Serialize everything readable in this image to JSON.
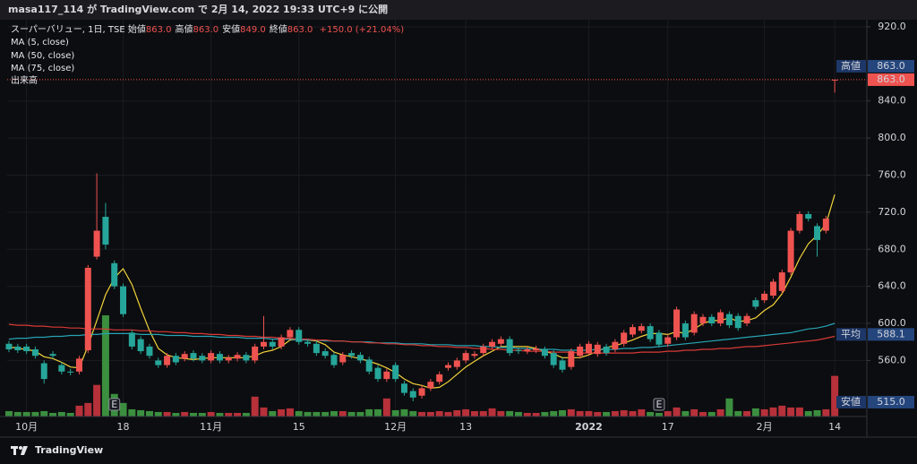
{
  "header": {
    "publisher": "masa117_114 が TradingView.com で 2月 14, 2022 19:33 UTC+9 に公開"
  },
  "legend": {
    "symbol": "スーパーバリュー, 1日, TSE",
    "fields": [
      {
        "name": "始値",
        "value": "863.0"
      },
      {
        "name": "高値",
        "value": "863.0"
      },
      {
        "name": "安値",
        "value": "849.0"
      },
      {
        "name": "終値",
        "value": "863.0"
      }
    ],
    "change": "+150.0 (+21.04%)"
  },
  "footer": {
    "brand": "TradingView"
  },
  "chart_data": {
    "type": "candlestick",
    "categories": [
      null,
      null,
      "10月",
      null,
      null,
      null,
      null,
      null,
      null,
      null,
      null,
      null,
      null,
      "18",
      null,
      null,
      null,
      null,
      null,
      null,
      null,
      null,
      null,
      "11月",
      null,
      null,
      null,
      null,
      null,
      null,
      null,
      null,
      null,
      "15",
      null,
      null,
      null,
      null,
      null,
      null,
      null,
      null,
      null,
      null,
      "12月",
      null,
      null,
      null,
      null,
      null,
      null,
      null,
      "13",
      null,
      null,
      null,
      null,
      null,
      null,
      null,
      null,
      null,
      null,
      null,
      null,
      null,
      "2022",
      null,
      null,
      null,
      null,
      null,
      null,
      null,
      null,
      "17",
      null,
      null,
      null,
      null,
      null,
      null,
      null,
      null,
      null,
      null,
      "2月",
      null,
      null,
      null,
      null,
      null,
      null,
      null,
      "14"
    ],
    "open": [
      578,
      575,
      575,
      572,
      557,
      567,
      555,
      548,
      548,
      571,
      672,
      715,
      665,
      640,
      590,
      583,
      575,
      560,
      555,
      565,
      562,
      568,
      565,
      560,
      567,
      560,
      562,
      566,
      560,
      575,
      580,
      575,
      585,
      593,
      580,
      578,
      570,
      566,
      558,
      568,
      566,
      561,
      552,
      540,
      555,
      535,
      527,
      522,
      530,
      537,
      552,
      553,
      560,
      565,
      568,
      575,
      578,
      583,
      571,
      570,
      571,
      572,
      568,
      560,
      553,
      565,
      568,
      567,
      575,
      572,
      578,
      588,
      592,
      597,
      590,
      578,
      585,
      600,
      590,
      600,
      607,
      600,
      610,
      608,
      600,
      625,
      625,
      630,
      635,
      655,
      700,
      718,
      705,
      700,
      863
    ],
    "high": [
      581,
      578,
      578,
      575,
      560,
      570,
      558,
      551,
      565,
      663,
      762,
      730,
      668,
      643,
      593,
      586,
      578,
      563,
      568,
      568,
      570,
      571,
      568,
      571,
      570,
      566,
      569,
      569,
      578,
      608,
      583,
      588,
      596,
      596,
      583,
      581,
      573,
      569,
      569,
      571,
      569,
      564,
      555,
      551,
      558,
      538,
      530,
      533,
      540,
      548,
      558,
      563,
      571,
      570,
      578,
      583,
      586,
      586,
      574,
      575,
      576,
      575,
      571,
      563,
      573,
      578,
      581,
      580,
      578,
      583,
      593,
      599,
      600,
      600,
      593,
      588,
      618,
      603,
      613,
      610,
      610,
      615,
      613,
      611,
      611,
      628,
      635,
      648,
      658,
      703,
      721,
      721,
      708,
      716,
      863
    ],
    "low": [
      569,
      568,
      567,
      562,
      535,
      562,
      545,
      544,
      545,
      568,
      669,
      680,
      637,
      607,
      572,
      567,
      562,
      552,
      552,
      555,
      559,
      559,
      557,
      557,
      557,
      557,
      559,
      557,
      557,
      572,
      572,
      572,
      582,
      577,
      575,
      565,
      562,
      552,
      555,
      562,
      557,
      545,
      537,
      537,
      537,
      522,
      516,
      519,
      527,
      534,
      549,
      550,
      557,
      562,
      565,
      572,
      575,
      565,
      567,
      567,
      568,
      562,
      552,
      547,
      550,
      562,
      565,
      564,
      565,
      569,
      575,
      585,
      589,
      580,
      574,
      575,
      582,
      582,
      587,
      597,
      597,
      597,
      595,
      592,
      597,
      615,
      622,
      627,
      632,
      652,
      697,
      710,
      672,
      697,
      849
    ],
    "close": [
      572,
      571,
      570,
      565,
      540,
      565,
      548,
      547,
      562,
      660,
      700,
      685,
      640,
      610,
      575,
      570,
      565,
      555,
      565,
      558,
      567,
      562,
      560,
      568,
      560,
      563,
      566,
      560,
      575,
      580,
      575,
      585,
      593,
      580,
      578,
      568,
      565,
      555,
      566,
      565,
      560,
      548,
      540,
      548,
      540,
      525,
      520,
      530,
      537,
      545,
      555,
      560,
      568,
      567,
      575,
      580,
      583,
      568,
      570,
      572,
      573,
      565,
      555,
      550,
      570,
      575,
      578,
      577,
      568,
      580,
      590,
      596,
      597,
      583,
      577,
      585,
      615,
      585,
      610,
      607,
      600,
      612,
      598,
      595,
      608,
      618,
      632,
      645,
      655,
      700,
      718,
      713,
      690,
      713,
      863
    ],
    "volume_name": "出来高",
    "volume": [
      6,
      5,
      5,
      5,
      6,
      4,
      5,
      4,
      12,
      15,
      35,
      112,
      25,
      15,
      8,
      7,
      6,
      5,
      5,
      4,
      5,
      4,
      4,
      5,
      4,
      4,
      4,
      4,
      22,
      10,
      6,
      8,
      9,
      6,
      5,
      5,
      5,
      6,
      6,
      5,
      5,
      8,
      8,
      20,
      7,
      8,
      6,
      5,
      5,
      6,
      5,
      7,
      8,
      6,
      6,
      9,
      6,
      6,
      5,
      4,
      4,
      5,
      6,
      7,
      8,
      6,
      6,
      5,
      5,
      6,
      7,
      6,
      8,
      5,
      4,
      6,
      10,
      6,
      8,
      5,
      5,
      8,
      20,
      6,
      6,
      9,
      8,
      10,
      12,
      10,
      10,
      6,
      7,
      8,
      45
    ],
    "up_color": "#ef5350",
    "down_color": "#26a69a",
    "volume_up_color": "#b7313a",
    "volume_down_color": "#3b8f3f",
    "series": [
      {
        "name": "MA (5, close)",
        "color": "#f2d33a",
        "values": [
          575,
          573,
          572,
          570,
          564,
          562,
          558,
          553,
          552,
          576,
          603,
          631,
          649,
          659,
          642,
          616,
          592,
          573,
          566,
          563,
          562,
          561,
          562,
          563,
          563,
          563,
          563,
          563,
          565,
          569,
          571,
          575,
          582,
          583,
          582,
          581,
          577,
          569,
          566,
          564,
          562,
          559,
          556,
          552,
          547,
          540,
          535,
          533,
          530,
          531,
          537,
          545,
          553,
          559,
          565,
          570,
          575,
          575,
          575,
          575,
          573,
          570,
          567,
          563,
          563,
          563,
          566,
          570,
          574,
          576,
          579,
          582,
          586,
          589,
          589,
          588,
          591,
          589,
          594,
          600,
          603,
          603,
          606,
          602,
          603,
          606,
          614,
          620,
          632,
          650,
          670,
          686,
          695,
          707,
          739
        ]
      },
      {
        "name": "MA (50, close)",
        "color": "#27a4b4",
        "values": [
          583,
          584,
          584,
          585,
          585,
          586,
          586,
          587,
          587,
          588,
          588,
          589,
          589,
          589,
          589,
          588,
          588,
          588,
          587,
          587,
          587,
          586,
          586,
          586,
          585,
          585,
          585,
          584,
          584,
          584,
          583,
          583,
          583,
          582,
          582,
          582,
          581,
          581,
          581,
          580,
          580,
          580,
          579,
          579,
          579,
          578,
          578,
          578,
          577,
          577,
          577,
          576,
          576,
          576,
          575,
          575,
          574,
          574,
          573,
          573,
          572,
          572,
          572,
          571,
          571,
          571,
          571,
          572,
          572,
          572,
          573,
          573,
          574,
          574,
          575,
          576,
          577,
          578,
          579,
          580,
          581,
          582,
          583,
          584,
          585,
          586,
          587,
          588,
          589,
          590,
          592,
          594,
          595,
          597,
          600
        ]
      },
      {
        "name": "MA (75, close)",
        "color": "#d83a36",
        "values": [
          599,
          598,
          598,
          597,
          597,
          596,
          596,
          595,
          595,
          594,
          594,
          594,
          593,
          593,
          593,
          592,
          592,
          591,
          591,
          590,
          590,
          589,
          589,
          588,
          588,
          587,
          587,
          586,
          586,
          585,
          585,
          584,
          584,
          583,
          583,
          582,
          582,
          581,
          581,
          580,
          580,
          579,
          579,
          578,
          578,
          577,
          577,
          576,
          576,
          575,
          575,
          574,
          574,
          573,
          573,
          572,
          572,
          571,
          571,
          570,
          570,
          570,
          569,
          569,
          569,
          568,
          568,
          568,
          568,
          568,
          568,
          568,
          569,
          569,
          569,
          570,
          570,
          571,
          571,
          572,
          572,
          573,
          573,
          574,
          575,
          575,
          576,
          577,
          578,
          579,
          580,
          581,
          582,
          584,
          586
        ]
      }
    ],
    "ylim": [
      499.5,
      927.7
    ],
    "yticks": [
      {
        "value": 560,
        "label": "560.0"
      },
      {
        "value": 600,
        "label": "600.0"
      },
      {
        "value": 640,
        "label": "640.0"
      },
      {
        "value": 680,
        "label": "680.0"
      },
      {
        "value": 720,
        "label": "720.0"
      },
      {
        "value": 760,
        "label": "760.0"
      },
      {
        "value": 800,
        "label": "800.0"
      },
      {
        "value": 840,
        "label": "840.0"
      },
      {
        "value": 920,
        "label": "920.0"
      }
    ],
    "grid": true,
    "last_price": {
      "value": 863,
      "label": "863.0",
      "color": "#ef5350"
    },
    "price_labels": [
      {
        "name": "高値",
        "value": 863,
        "label": "863.0"
      },
      {
        "name": "平均",
        "value": 588.1,
        "label": "588.1"
      },
      {
        "name": "安値",
        "value": 515,
        "label": "515.0"
      }
    ],
    "events": [
      "E",
      "E"
    ]
  }
}
